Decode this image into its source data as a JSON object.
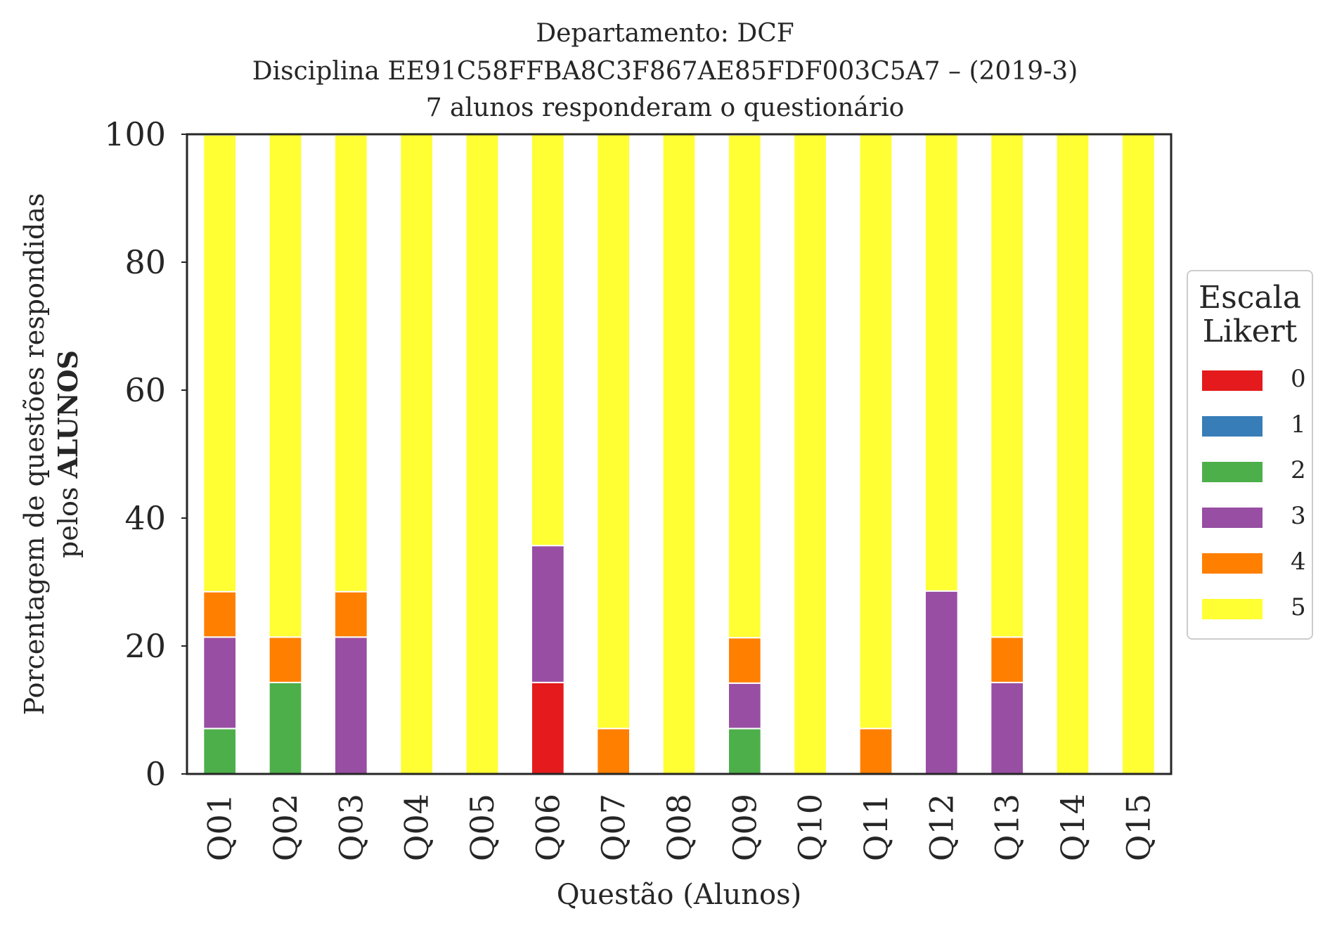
{
  "chart_data": {
    "type": "bar",
    "stacked": true,
    "title_lines": [
      "Departamento: DCF",
      "Disciplina EE91C58FFBA8C3F867AE85FDF003C5A7 – (2019-3)",
      "7 alunos responderam o questionário"
    ],
    "xlabel": "Questão (Alunos)",
    "ylabel_line1": "Porcentagem de questões respondidas",
    "ylabel_line2_prefix": "pelos",
    "ylabel_line2_bold": "ALUNOS",
    "ylim": [
      0,
      100
    ],
    "yticks": [
      "0",
      "20",
      "40",
      "60",
      "80",
      "100"
    ],
    "categories": [
      "Q01",
      "Q02",
      "Q03",
      "Q04",
      "Q05",
      "Q06",
      "Q07",
      "Q08",
      "Q09",
      "Q10",
      "Q11",
      "Q12",
      "Q13",
      "Q14",
      "Q15"
    ],
    "legend_title": [
      "Escala",
      "Likert"
    ],
    "legend_position": "center-right",
    "grid": false,
    "series": [
      {
        "name": "0",
        "color": "#e41a1c",
        "values": [
          0,
          0,
          0,
          0,
          0,
          14.3,
          0,
          0,
          0,
          0,
          0,
          0,
          0,
          0,
          0
        ]
      },
      {
        "name": "1",
        "color": "#377eb8",
        "values": [
          0,
          0,
          0,
          0,
          0,
          0,
          0,
          0,
          0,
          0,
          0,
          0,
          0,
          0,
          0
        ]
      },
      {
        "name": "2",
        "color": "#4daf4a",
        "values": [
          7.1,
          14.3,
          0,
          0,
          0,
          0,
          0,
          0,
          7.1,
          0,
          0,
          0,
          0,
          0,
          0
        ]
      },
      {
        "name": "3",
        "color": "#984ea3",
        "values": [
          14.3,
          0,
          21.4,
          0,
          0,
          21.4,
          0,
          0,
          7.1,
          0,
          0,
          28.6,
          14.3,
          0,
          0
        ]
      },
      {
        "name": "4",
        "color": "#ff7f00",
        "values": [
          7.1,
          7.1,
          7.1,
          0,
          0,
          0,
          7.1,
          0,
          7.1,
          0,
          7.1,
          0,
          7.1,
          0,
          0
        ]
      },
      {
        "name": "5",
        "color": "#ffff33",
        "values": [
          71.4,
          78.6,
          71.4,
          100,
          100,
          64.3,
          92.9,
          100,
          78.6,
          100,
          92.9,
          71.4,
          78.6,
          100,
          100
        ]
      }
    ]
  }
}
